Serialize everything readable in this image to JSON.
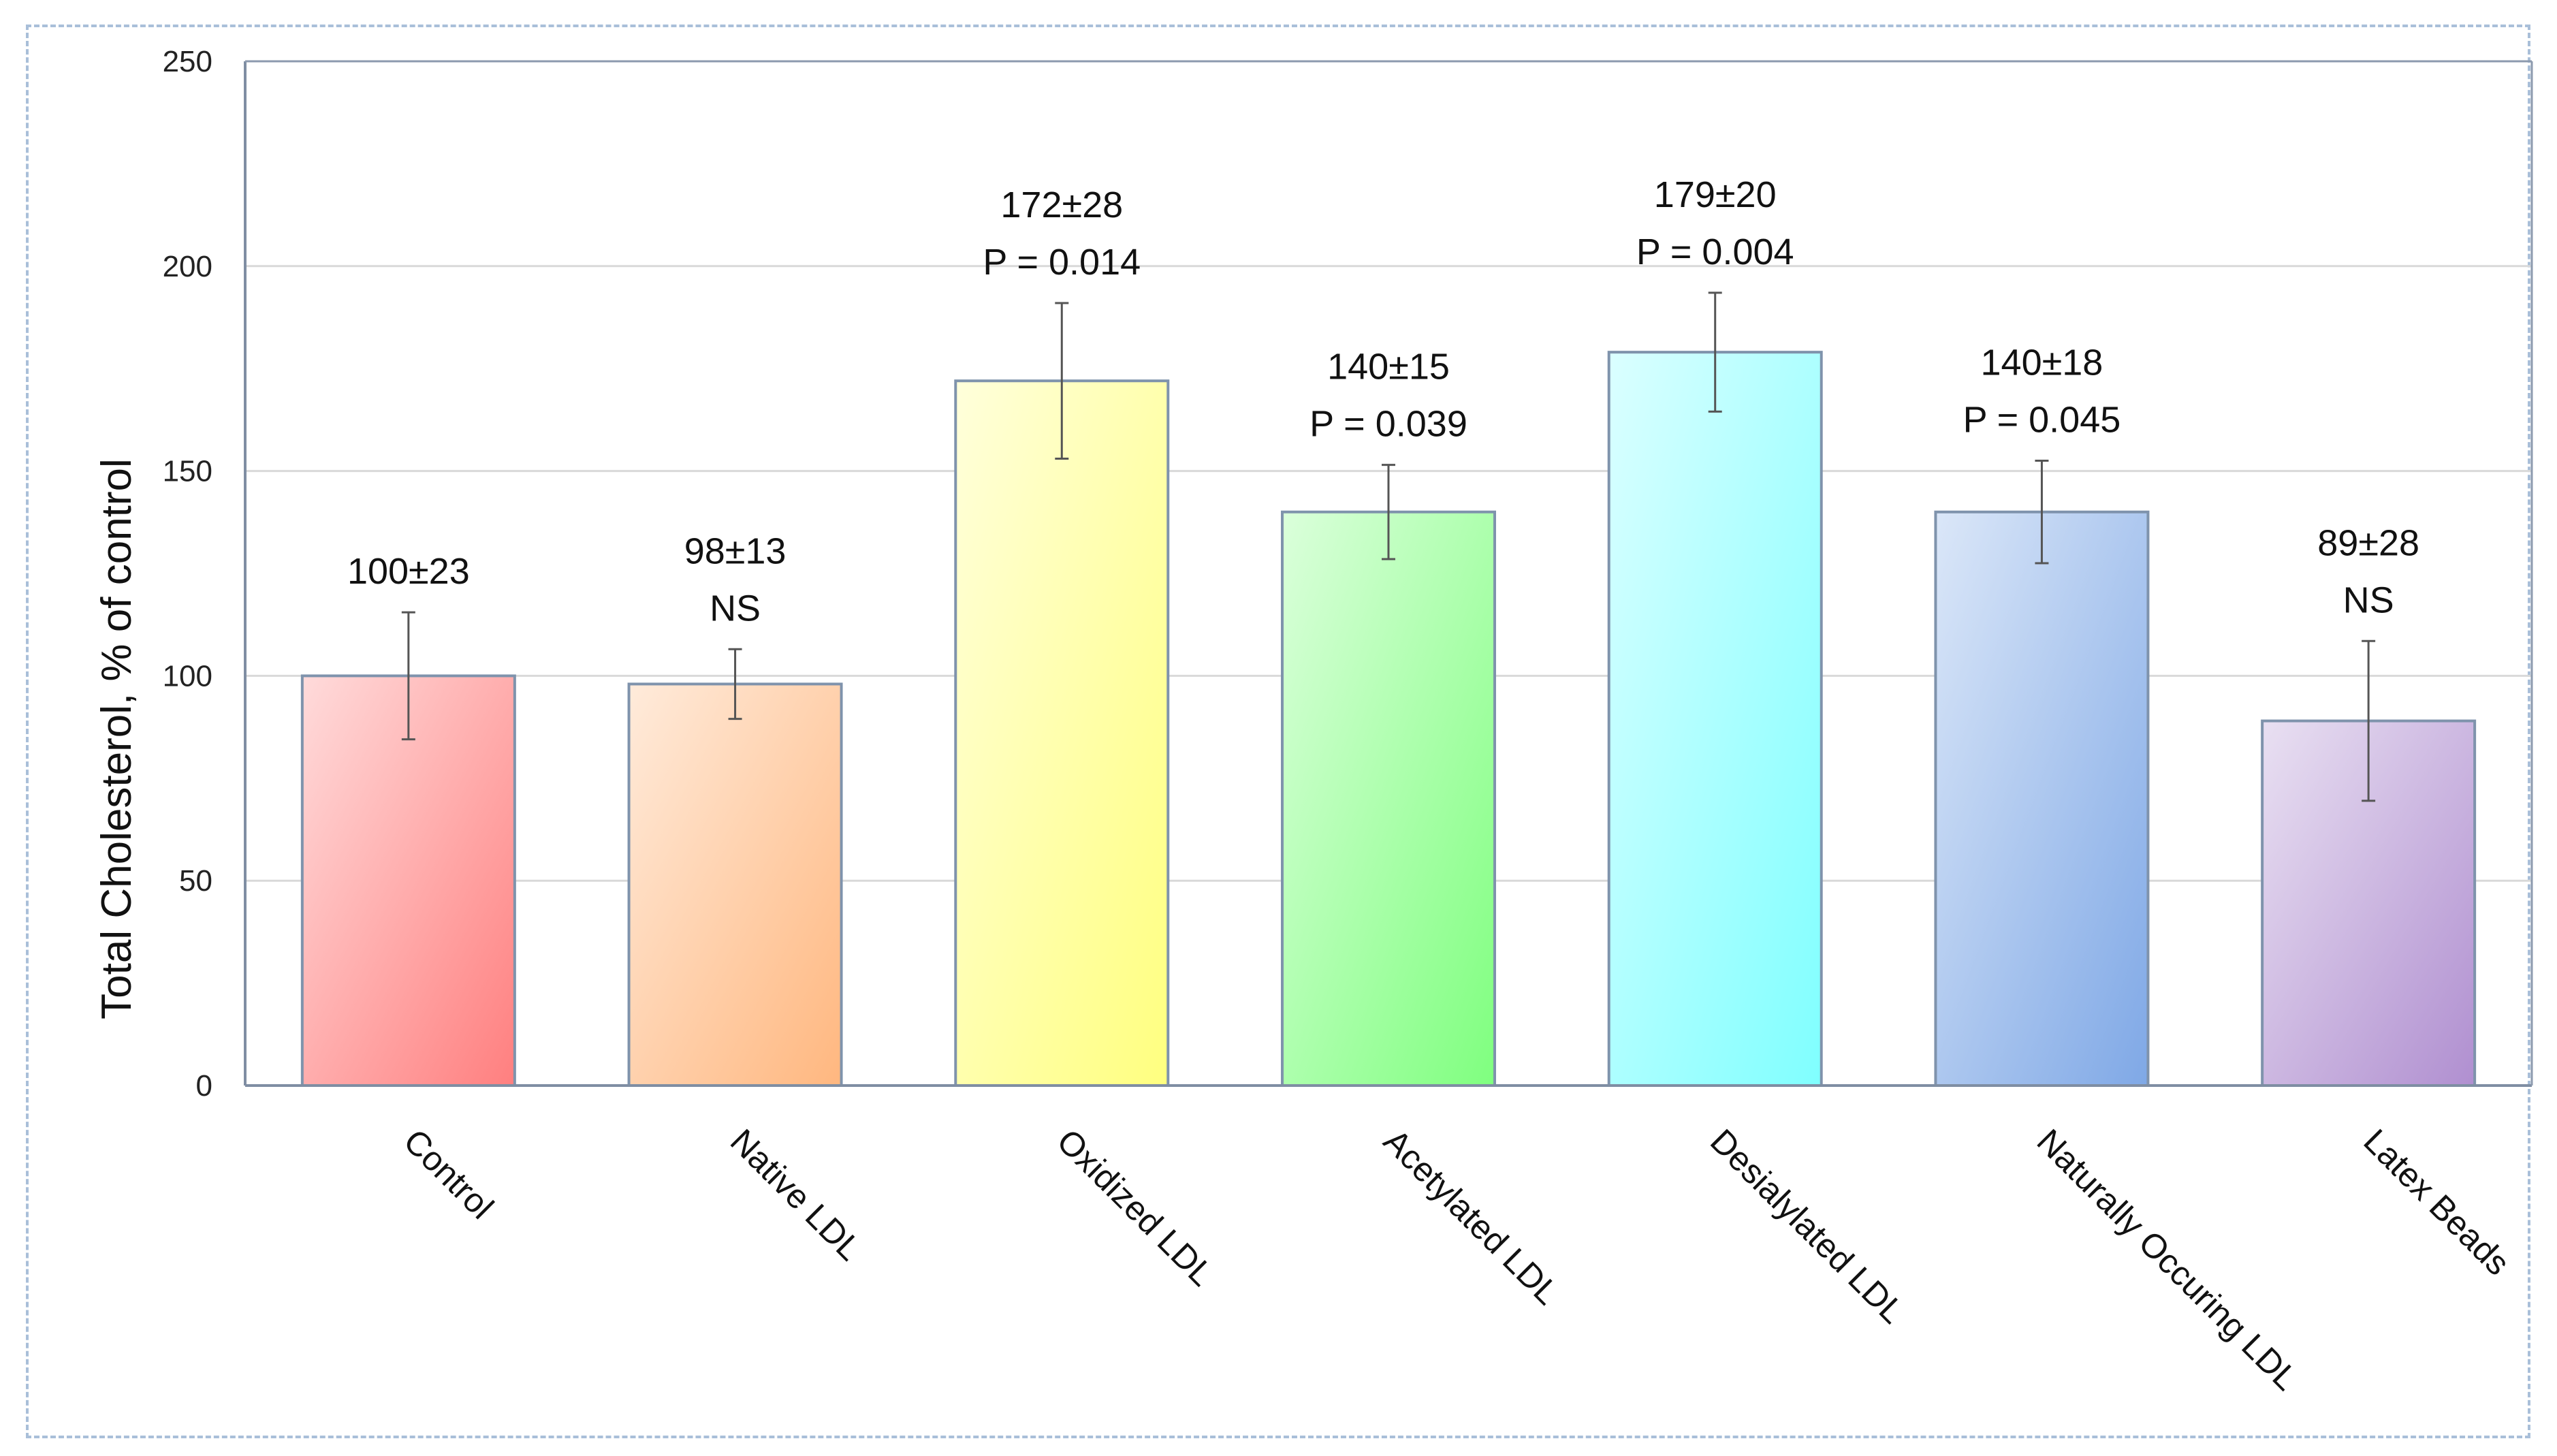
{
  "chart_data": {
    "type": "bar",
    "title": "",
    "xlabel": "",
    "ylabel": "Total Cholesterol, % of control",
    "ylim": [
      0,
      250
    ],
    "yticks": [
      0,
      50,
      100,
      150,
      200,
      250
    ],
    "grid": true,
    "legend": "none",
    "categories": [
      "Control",
      "Native LDL",
      "Oxidized LDL",
      "Acetylated LDL",
      "Desialylated LDL",
      "Naturally Occuring LDL",
      "Latex Beads"
    ],
    "values": [
      100,
      98,
      172,
      140,
      179,
      140,
      89
    ],
    "errors": [
      15.5,
      8.5,
      19,
      11.5,
      14.5,
      12.5,
      19.5
    ],
    "value_labels": [
      "100±23",
      "98±13",
      "172±28",
      "140±15",
      "179±20",
      "140±18",
      "89±28"
    ],
    "significance_labels": [
      "",
      "NS",
      "P = 0.014",
      "P = 0.039",
      "P = 0.004",
      "P = 0.045",
      "NS"
    ],
    "colors": [
      "#ff7f7f",
      "#ffb77f",
      "#ffff7f",
      "#7fff7f",
      "#7fffff",
      "#7fa8e6",
      "#b08fd0"
    ]
  }
}
